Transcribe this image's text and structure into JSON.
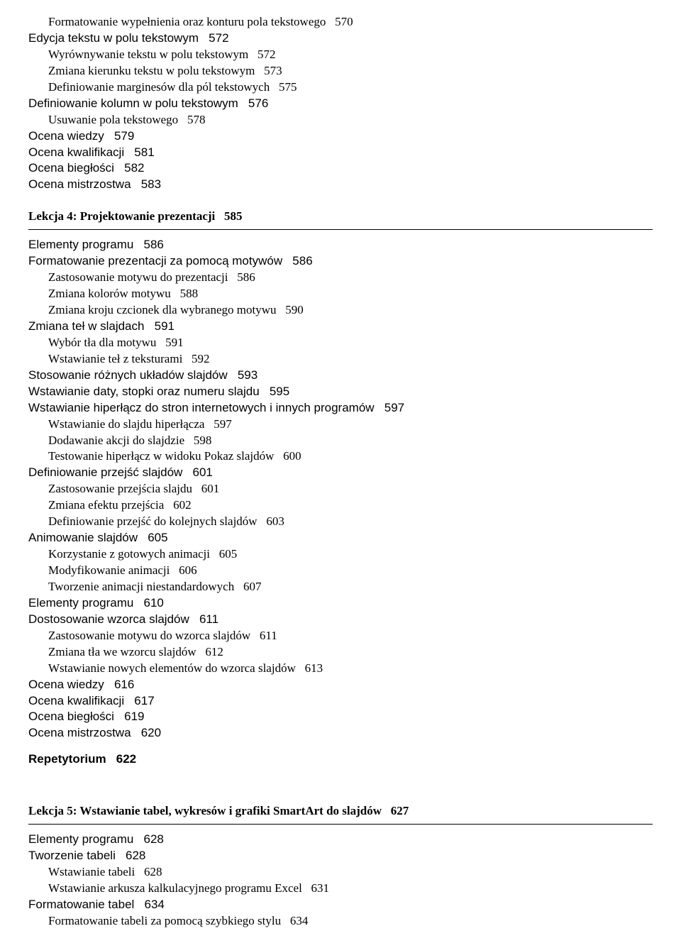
{
  "block1": [
    {
      "text": "Formatowanie wypełnienia oraz konturu pola tekstowego",
      "page": "570",
      "cls": "lvl1",
      "sans": false,
      "bold": false
    },
    {
      "text": "Edycja tekstu w polu tekstowym",
      "page": "572",
      "cls": "lvl0",
      "sans": true,
      "bold": false
    },
    {
      "text": "Wyrównywanie tekstu w polu tekstowym",
      "page": "572",
      "cls": "lvl1",
      "sans": false,
      "bold": false
    },
    {
      "text": "Zmiana kierunku tekstu w polu tekstowym",
      "page": "573",
      "cls": "lvl1",
      "sans": false,
      "bold": false
    },
    {
      "text": "Definiowanie marginesów dla pól tekstowych",
      "page": "575",
      "cls": "lvl1",
      "sans": false,
      "bold": false
    },
    {
      "text": "Definiowanie kolumn w polu tekstowym",
      "page": "576",
      "cls": "lvl0",
      "sans": true,
      "bold": false
    },
    {
      "text": "Usuwanie pola tekstowego",
      "page": "578",
      "cls": "lvl1",
      "sans": false,
      "bold": false
    },
    {
      "text": "Ocena wiedzy",
      "page": "579",
      "cls": "lvl0",
      "sans": true,
      "bold": false
    },
    {
      "text": "Ocena kwalifikacji",
      "page": "581",
      "cls": "lvl0",
      "sans": true,
      "bold": false
    },
    {
      "text": "Ocena biegłości",
      "page": "582",
      "cls": "lvl0",
      "sans": true,
      "bold": false
    },
    {
      "text": "Ocena mistrzostwa",
      "page": "583",
      "cls": "lvl0",
      "sans": true,
      "bold": false
    }
  ],
  "lesson4": {
    "title": "Lekcja 4:  Projektowanie prezentacji",
    "page": "585"
  },
  "block2": [
    {
      "text": "Elementy programu",
      "page": "586",
      "cls": "lvl0",
      "sans": true,
      "bold": false
    },
    {
      "text": "Formatowanie prezentacji za pomocą motywów",
      "page": "586",
      "cls": "lvl0",
      "sans": true,
      "bold": false
    },
    {
      "text": "Zastosowanie motywu do prezentacji",
      "page": "586",
      "cls": "lvl1",
      "sans": false,
      "bold": false
    },
    {
      "text": "Zmiana kolorów motywu",
      "page": "588",
      "cls": "lvl1",
      "sans": false,
      "bold": false
    },
    {
      "text": "Zmiana kroju czcionek dla wybranego motywu",
      "page": "590",
      "cls": "lvl1",
      "sans": false,
      "bold": false
    },
    {
      "text": "Zmiana teł w slajdach",
      "page": "591",
      "cls": "lvl0",
      "sans": true,
      "bold": false
    },
    {
      "text": "Wybór tła dla motywu",
      "page": "591",
      "cls": "lvl1",
      "sans": false,
      "bold": false
    },
    {
      "text": "Wstawianie teł z teksturami",
      "page": "592",
      "cls": "lvl1",
      "sans": false,
      "bold": false
    },
    {
      "text": "Stosowanie różnych układów slajdów",
      "page": "593",
      "cls": "lvl0",
      "sans": true,
      "bold": false
    },
    {
      "text": "Wstawianie daty, stopki oraz numeru slajdu",
      "page": "595",
      "cls": "lvl0",
      "sans": true,
      "bold": false
    },
    {
      "text": "Wstawianie hiperłącz do stron internetowych i innych programów",
      "page": "597",
      "cls": "lvl0",
      "sans": true,
      "bold": false
    },
    {
      "text": "Wstawianie do slajdu hiperłącza",
      "page": "597",
      "cls": "lvl1",
      "sans": false,
      "bold": false
    },
    {
      "text": "Dodawanie akcji do slajdzie",
      "page": "598",
      "cls": "lvl1",
      "sans": false,
      "bold": false
    },
    {
      "text": "Testowanie hiperłącz w widoku Pokaz slajdów",
      "page": "600",
      "cls": "lvl1",
      "sans": false,
      "bold": false
    },
    {
      "text": "Definiowanie przejść slajdów",
      "page": "601",
      "cls": "lvl0",
      "sans": true,
      "bold": false
    },
    {
      "text": "Zastosowanie przejścia slajdu",
      "page": "601",
      "cls": "lvl1",
      "sans": false,
      "bold": false
    },
    {
      "text": "Zmiana efektu przejścia",
      "page": "602",
      "cls": "lvl1",
      "sans": false,
      "bold": false
    },
    {
      "text": "Definiowanie przejść do kolejnych slajdów",
      "page": "603",
      "cls": "lvl1",
      "sans": false,
      "bold": false
    },
    {
      "text": "Animowanie slajdów",
      "page": "605",
      "cls": "lvl0",
      "sans": true,
      "bold": false
    },
    {
      "text": "Korzystanie z gotowych animacji",
      "page": "605",
      "cls": "lvl1",
      "sans": false,
      "bold": false
    },
    {
      "text": "Modyfikowanie animacji",
      "page": "606",
      "cls": "lvl1",
      "sans": false,
      "bold": false
    },
    {
      "text": "Tworzenie animacji niestandardowych",
      "page": "607",
      "cls": "lvl1",
      "sans": false,
      "bold": false
    },
    {
      "text": "Elementy programu",
      "page": "610",
      "cls": "lvl0",
      "sans": true,
      "bold": false
    },
    {
      "text": "Dostosowanie wzorca slajdów",
      "page": "611",
      "cls": "lvl0",
      "sans": true,
      "bold": false
    },
    {
      "text": "Zastosowanie motywu do wzorca slajdów",
      "page": "611",
      "cls": "lvl1",
      "sans": false,
      "bold": false
    },
    {
      "text": "Zmiana tła we wzorcu slajdów",
      "page": "612",
      "cls": "lvl1",
      "sans": false,
      "bold": false
    },
    {
      "text": "Wstawianie nowych elementów do wzorca slajdów",
      "page": "613",
      "cls": "lvl1",
      "sans": false,
      "bold": false
    },
    {
      "text": "Ocena wiedzy",
      "page": "616",
      "cls": "lvl0",
      "sans": true,
      "bold": false
    },
    {
      "text": "Ocena kwalifikacji",
      "page": "617",
      "cls": "lvl0",
      "sans": true,
      "bold": false
    },
    {
      "text": "Ocena biegłości",
      "page": "619",
      "cls": "lvl0",
      "sans": true,
      "bold": false
    },
    {
      "text": "Ocena mistrzostwa",
      "page": "620",
      "cls": "lvl0",
      "sans": true,
      "bold": false
    }
  ],
  "repetytorium": {
    "title": "Repetytorium",
    "page": "622"
  },
  "lesson5": {
    "title": "Lekcja 5:  Wstawianie tabel, wykresów i grafiki SmartArt do slajdów",
    "page": "627"
  },
  "block3": [
    {
      "text": "Elementy programu",
      "page": "628",
      "cls": "lvl0",
      "sans": true,
      "bold": false
    },
    {
      "text": "Tworzenie tabeli",
      "page": "628",
      "cls": "lvl0",
      "sans": true,
      "bold": false
    },
    {
      "text": "Wstawianie tabeli",
      "page": "628",
      "cls": "lvl1",
      "sans": false,
      "bold": false
    },
    {
      "text": "Wstawianie arkusza kalkulacyjnego programu Excel",
      "page": "631",
      "cls": "lvl1",
      "sans": false,
      "bold": false
    },
    {
      "text": "Formatowanie tabel",
      "page": "634",
      "cls": "lvl0",
      "sans": true,
      "bold": false
    },
    {
      "text": "Formatowanie tabeli za pomocą szybkiego stylu",
      "page": "634",
      "cls": "lvl1",
      "sans": false,
      "bold": false
    }
  ]
}
